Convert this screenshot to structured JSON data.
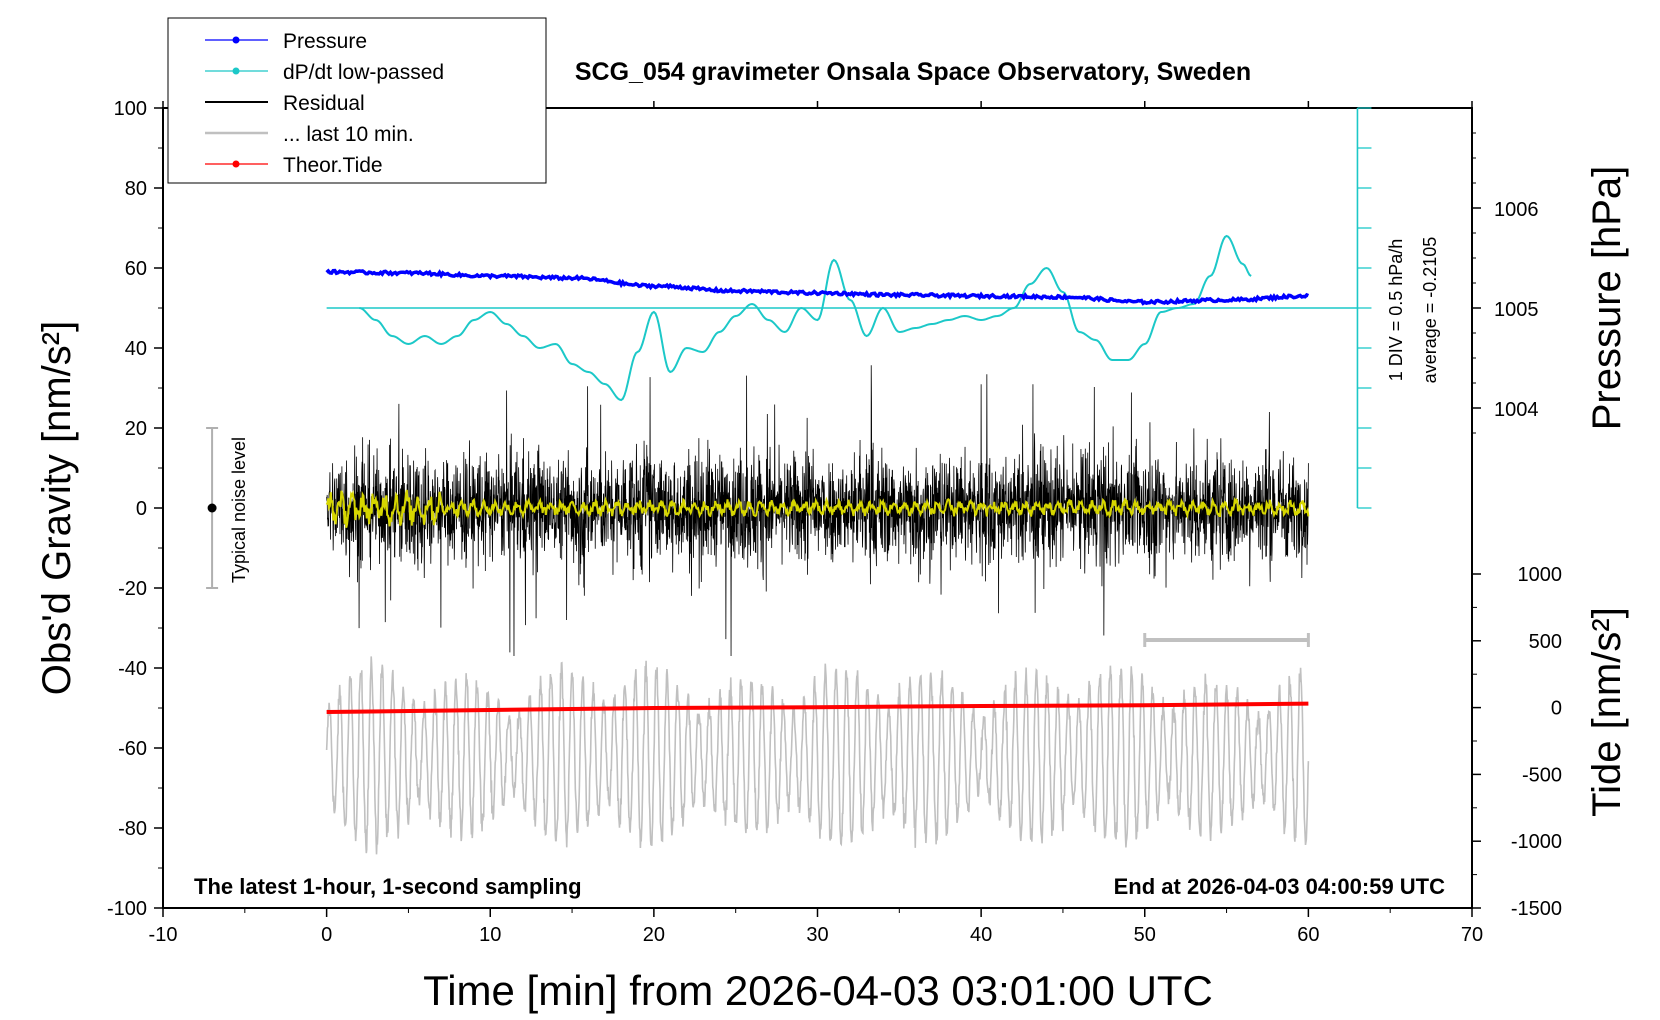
{
  "chart_data": {
    "type": "line",
    "title": "SCG_054 gravimeter Onsala Space Observatory, Sweden",
    "xlabel": "Time [min] from 2026-04-03 03:01:00 UTC",
    "ylabel": "Obs'd Gravity [nm/s²]",
    "ylabel_right_pressure": "Pressure [hPa]",
    "ylabel_right_tide": "Tide [nm/s²]",
    "xlim": [
      -10,
      70
    ],
    "ylim": [
      -100,
      100
    ],
    "pressure_axis": {
      "ticks": [
        1004,
        1005,
        1006
      ],
      "tick_labels": [
        "1004",
        "1005",
        "1006"
      ]
    },
    "tide_axis": {
      "range": [
        -1500,
        1000
      ],
      "ticks": [
        -1500,
        -1000,
        -500,
        0,
        500,
        1000
      ],
      "tick_labels": [
        "-1500",
        "-1000",
        "-500",
        "0",
        "500",
        "1000"
      ]
    },
    "x_ticks": [
      -10,
      0,
      10,
      20,
      30,
      40,
      50,
      60,
      70
    ],
    "x_tick_labels": [
      "-10",
      "0",
      "10",
      "20",
      "30",
      "40",
      "50",
      "60",
      "70"
    ],
    "y_ticks": [
      -100,
      -80,
      -60,
      -40,
      -20,
      0,
      20,
      40,
      60,
      80,
      100
    ],
    "y_tick_labels": [
      "-100",
      "-80",
      "-60",
      "-40",
      "-20",
      "0",
      "20",
      "40",
      "60",
      "80",
      "100"
    ],
    "legend_position": "top-left",
    "grid": false,
    "series": [
      {
        "name": "Pressure",
        "color": "#0000ff",
        "x": [
          0,
          5,
          10,
          15,
          20,
          25,
          30,
          35,
          40,
          45,
          50,
          55,
          60
        ],
        "y": [
          1005.36,
          1005.35,
          1005.32,
          1005.3,
          1005.22,
          1005.17,
          1005.15,
          1005.13,
          1005.12,
          1005.11,
          1005.06,
          1005.08,
          1005.12
        ]
      },
      {
        "name": "dP/dt low-passed",
        "color": "#1cc8c8",
        "x": [
          2,
          3,
          4,
          5,
          6,
          7,
          8,
          9,
          10,
          11,
          12,
          13,
          14,
          15,
          16,
          17,
          18,
          19,
          20,
          21,
          22,
          23,
          24,
          25,
          26,
          27,
          28,
          29,
          30,
          31,
          32,
          33,
          34,
          35,
          36,
          37,
          38,
          39,
          40,
          41,
          42,
          43,
          44,
          45,
          46,
          47,
          48,
          49,
          50,
          51,
          52,
          53,
          54,
          55,
          56,
          56.5
        ],
        "y": [
          50,
          47,
          43,
          41,
          43,
          41,
          43,
          47,
          49,
          46,
          43,
          40,
          41,
          36,
          34,
          31,
          27,
          39,
          49,
          34,
          40,
          39,
          44,
          48,
          51,
          47,
          44,
          50,
          47,
          62,
          52,
          43,
          50,
          44,
          45,
          46,
          47,
          48,
          47,
          48,
          50,
          56,
          60,
          54,
          44,
          42,
          37,
          37,
          41,
          49,
          50,
          51,
          58,
          68,
          61,
          58
        ]
      },
      {
        "name": "Residual",
        "color": "#000000",
        "x": [
          0,
          60
        ],
        "y": [
          0,
          0
        ]
      },
      {
        "name": "... last 10 min.",
        "color": "#c0c0c0",
        "x": [
          50,
          60
        ],
        "y": [
          -50,
          -50
        ]
      },
      {
        "name": "Theor.Tide",
        "color": "#ff0000",
        "x": [
          0,
          10,
          20,
          30,
          40,
          50,
          60
        ],
        "y": [
          -51,
          -50.5,
          -50,
          -49.8,
          -49.5,
          -49.3,
          -48.9
        ]
      }
    ],
    "annotations": {
      "noise_label": "Typical noise level",
      "div_label": "1 DIV = 0.5 hPa/h",
      "average_label": "average = -0.2105",
      "footer_left": "The latest 1-hour, 1-second sampling",
      "footer_right": "End at 2026-04-03 04:00:59 UTC"
    }
  },
  "colors": {
    "pressure": "#0000ff",
    "dpdt": "#1cc8c8",
    "residual": "#000000",
    "last10": "#c0c0c0",
    "tide": "#ff0000",
    "smoothed": "#d6d600",
    "noise_bar": "#b0b0b0"
  }
}
